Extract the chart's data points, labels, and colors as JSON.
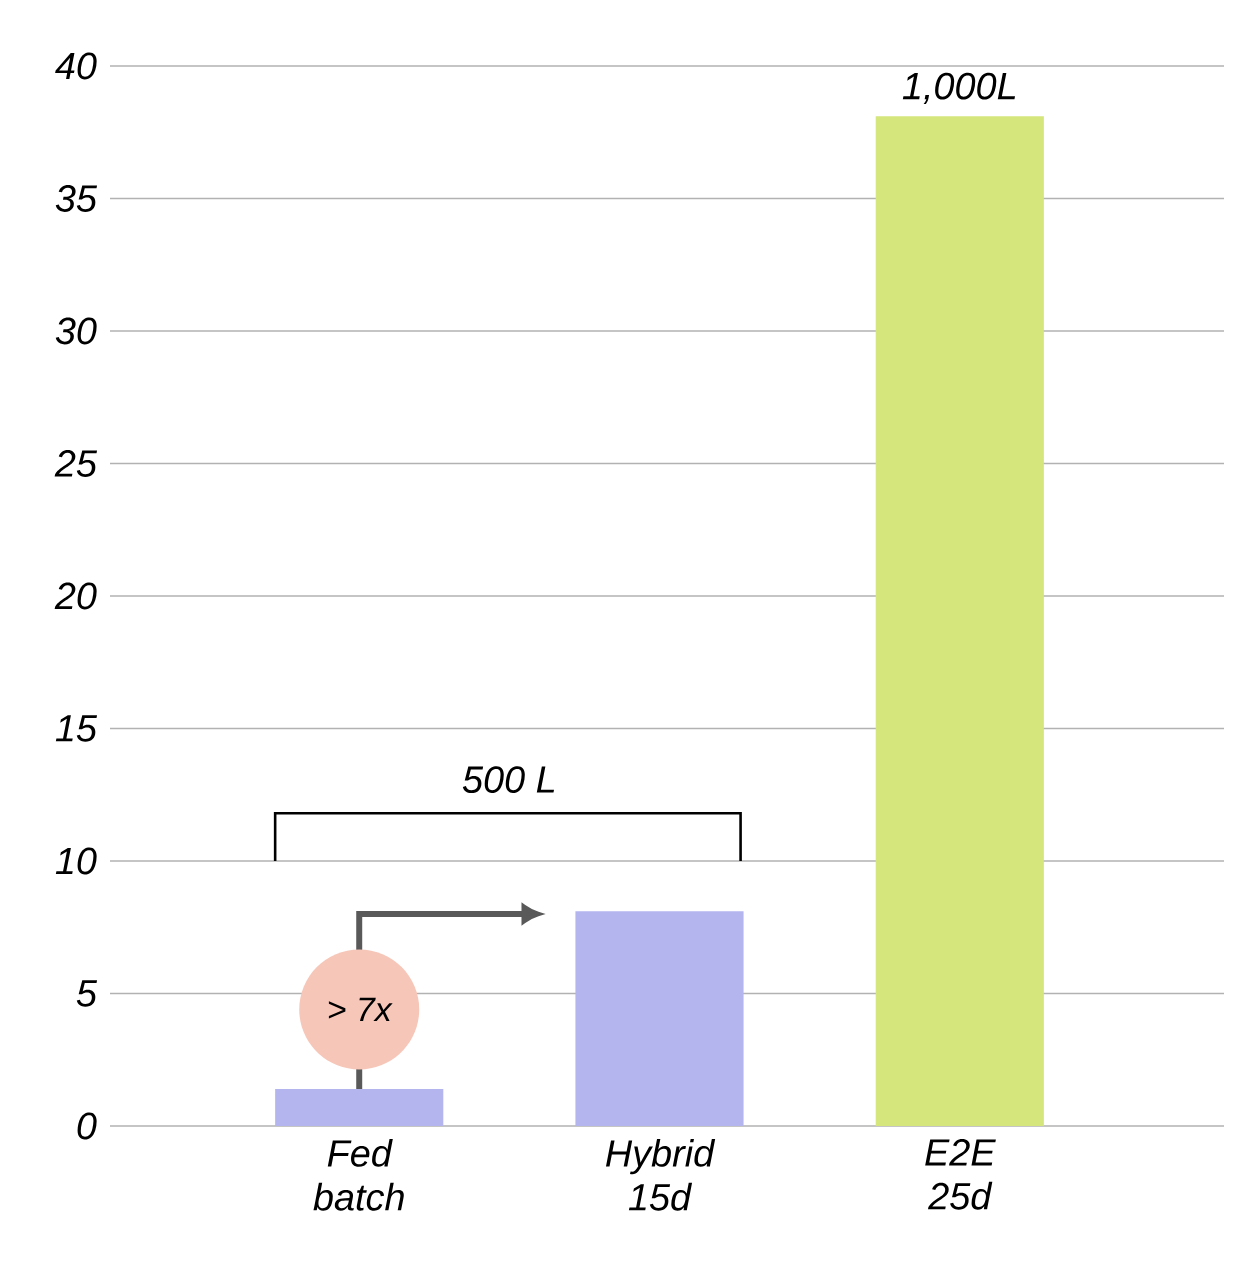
{
  "chart_data": {
    "type": "bar",
    "categories": [
      "Fed batch",
      "Hybrid 15d",
      "E2E 25d"
    ],
    "values": [
      1.4,
      8.1,
      38.1
    ],
    "colors": [
      "#b4b4ef",
      "#b4b4ef",
      "#d5e67c"
    ],
    "ylim": [
      0,
      40
    ],
    "yticks": [
      0,
      5,
      10,
      15,
      20,
      25,
      30,
      35,
      40
    ],
    "grid": "y",
    "annotations": [
      {
        "text": "1,000L",
        "x": "E2E 25d",
        "y": 38.1
      },
      "500 L",
      "> 7x"
    ]
  }
}
